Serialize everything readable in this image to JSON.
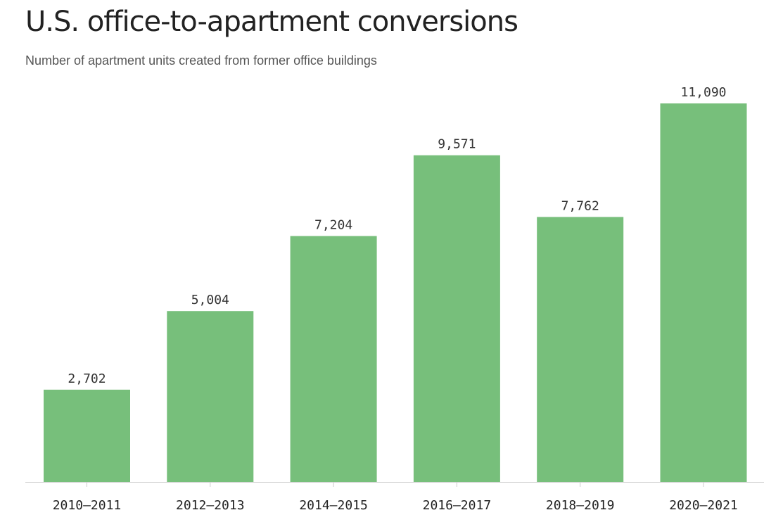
{
  "chart_data": {
    "type": "bar",
    "title": "U.S. office-to-apartment conversions",
    "subtitle": "Number of apartment units created from former office buildings",
    "categories": [
      "2010–2011",
      "2012–2013",
      "2014–2015",
      "2016–2017",
      "2018–2019",
      "2020–2021"
    ],
    "values": [
      2702,
      5004,
      7204,
      9571,
      7762,
      11090
    ],
    "value_labels": [
      "2,702",
      "5,004",
      "7,204",
      "9,571",
      "7,762",
      "11,090"
    ],
    "ylim": [
      0,
      12000
    ],
    "grid": false,
    "legend": "none",
    "bar_color": "#77bf7b",
    "xlabel": "",
    "ylabel": ""
  }
}
